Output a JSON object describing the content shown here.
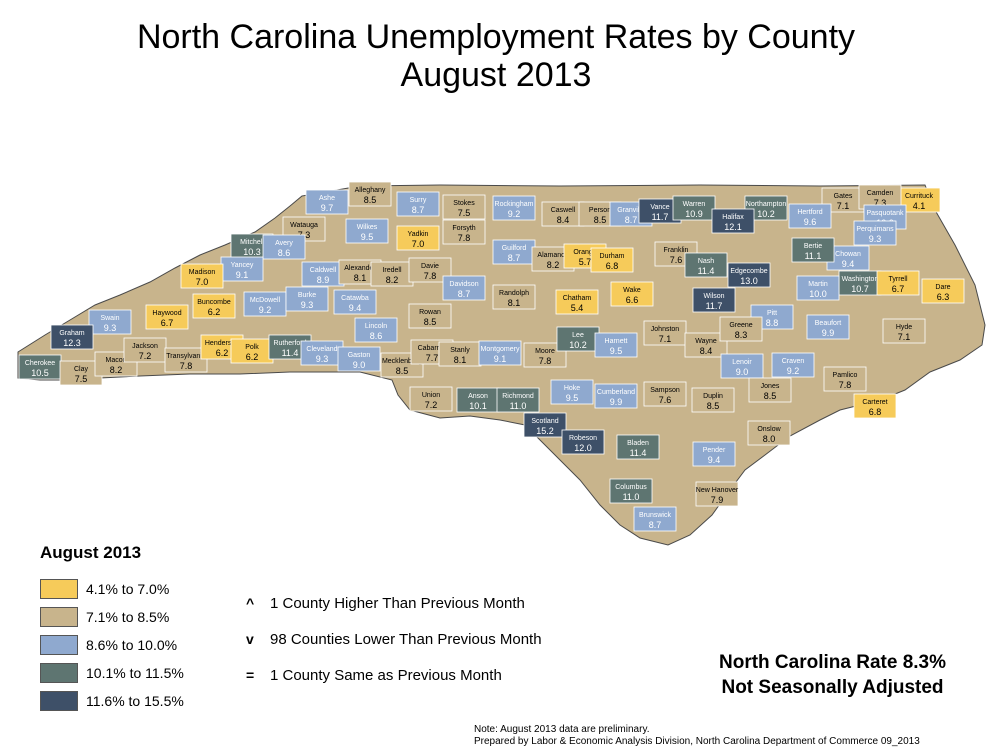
{
  "title": {
    "line1": "North Carolina Unemployment Rates by County",
    "line2": "August 2013"
  },
  "legend": {
    "title": "August 2013",
    "classes": [
      {
        "label": "4.1% to 7.0%",
        "color": "#f6cb5a"
      },
      {
        "label": "7.1% to 8.5%",
        "color": "#c8b48c"
      },
      {
        "label": "8.6% to 10.0%",
        "color": "#8fa9cf"
      },
      {
        "label": "10.1% to 11.5%",
        "color": "#5e7571"
      },
      {
        "label": "11.6% to 15.5%",
        "color": "#3e5068"
      }
    ]
  },
  "changes": [
    {
      "symbol": "^",
      "text": "1 County Higher Than Previous Month"
    },
    {
      "symbol": "v",
      "text": "98 Counties Lower Than Previous Month"
    },
    {
      "symbol": "=",
      "text": "1 County Same as Previous Month"
    }
  ],
  "state_rate": {
    "line1": "North Carolina Rate 8.3%",
    "line2": "Not Seasonally Adjusted"
  },
  "notes": {
    "line1": "Note: August 2013 data are preliminary.",
    "line2": "Prepared by Labor & Economic Analysis Division, North Carolina Department of Commerce 09_2013"
  },
  "counties": [
    {
      "name": "Alleghany",
      "value": "8.5"
    },
    {
      "name": "Ashe",
      "value": "9.7"
    },
    {
      "name": "Surry",
      "value": "8.7"
    },
    {
      "name": "Stokes",
      "value": "7.5"
    },
    {
      "name": "Rockingham",
      "value": "9.2"
    },
    {
      "name": "Caswell",
      "value": "8.4"
    },
    {
      "name": "Person",
      "value": "8.5"
    },
    {
      "name": "Granville",
      "value": "8.7"
    },
    {
      "name": "Vance",
      "value": "11.7"
    },
    {
      "name": "Warren",
      "value": "10.9"
    },
    {
      "name": "Northampton",
      "value": "10.2"
    },
    {
      "name": "Gates",
      "value": "7.1"
    },
    {
      "name": "Currituck",
      "value": "4.1"
    },
    {
      "name": "Camden",
      "value": "7.3"
    },
    {
      "name": "Hertford",
      "value": "9.6"
    },
    {
      "name": "Pasquotank",
      "value": "10.0"
    },
    {
      "name": "Perquimans",
      "value": "9.3"
    },
    {
      "name": "Chowan",
      "value": "9.4"
    },
    {
      "name": "Watauga",
      "value": "7.3"
    },
    {
      "name": "Wilkes",
      "value": "9.5"
    },
    {
      "name": "Yadkin",
      "value": "7.0"
    },
    {
      "name": "Forsyth",
      "value": "7.8"
    },
    {
      "name": "Guilford",
      "value": "8.7"
    },
    {
      "name": "Alamance",
      "value": "8.2"
    },
    {
      "name": "Orange",
      "value": "5.7"
    },
    {
      "name": "Durham",
      "value": "6.8"
    },
    {
      "name": "Franklin",
      "value": "7.6"
    },
    {
      "name": "Halifax",
      "value": "12.1"
    },
    {
      "name": "Bertie",
      "value": "11.1"
    },
    {
      "name": "Washington",
      "value": "10.7"
    },
    {
      "name": "Tyrrell",
      "value": "6.7"
    },
    {
      "name": "Dare",
      "value": "6.3"
    },
    {
      "name": "Mitchell",
      "value": "10.3"
    },
    {
      "name": "Avery",
      "value": "8.6"
    },
    {
      "name": "Yancey",
      "value": "9.1"
    },
    {
      "name": "Madison",
      "value": "7.0"
    },
    {
      "name": "Caldwell",
      "value": "8.9"
    },
    {
      "name": "Alexander",
      "value": "8.1"
    },
    {
      "name": "Iredell",
      "value": "8.2"
    },
    {
      "name": "Davie",
      "value": "7.8"
    },
    {
      "name": "Davidson",
      "value": "8.7"
    },
    {
      "name": "Randolph",
      "value": "8.1"
    },
    {
      "name": "Chatham",
      "value": "5.4"
    },
    {
      "name": "Wake",
      "value": "6.6"
    },
    {
      "name": "Nash",
      "value": "11.4"
    },
    {
      "name": "Edgecombe",
      "value": "13.0"
    },
    {
      "name": "Wilson",
      "value": "11.7"
    },
    {
      "name": "Martin",
      "value": "10.0"
    },
    {
      "name": "Hyde",
      "value": "7.1"
    },
    {
      "name": "Beaufort",
      "value": "9.9"
    },
    {
      "name": "Pitt",
      "value": "8.8"
    },
    {
      "name": "Haywood",
      "value": "6.7"
    },
    {
      "name": "Buncombe",
      "value": "6.2"
    },
    {
      "name": "McDowell",
      "value": "9.2"
    },
    {
      "name": "Burke",
      "value": "9.3"
    },
    {
      "name": "Catawba",
      "value": "9.4"
    },
    {
      "name": "Rowan",
      "value": "8.5"
    },
    {
      "name": "Swain",
      "value": "9.3"
    },
    {
      "name": "Graham",
      "value": "12.3"
    },
    {
      "name": "Cherokee",
      "value": "10.5"
    },
    {
      "name": "Clay",
      "value": "7.5"
    },
    {
      "name": "Macon",
      "value": "8.2"
    },
    {
      "name": "Jackson",
      "value": "7.2"
    },
    {
      "name": "Transylvania",
      "value": "7.8"
    },
    {
      "name": "Henderson",
      "value": "6.2"
    },
    {
      "name": "Polk",
      "value": "6.2"
    },
    {
      "name": "Rutherford",
      "value": "11.4"
    },
    {
      "name": "Cleveland",
      "value": "9.3"
    },
    {
      "name": "Lincoln",
      "value": "8.6"
    },
    {
      "name": "Gaston",
      "value": "9.0"
    },
    {
      "name": "Mecklenburg",
      "value": "8.5"
    },
    {
      "name": "Cabarrus",
      "value": "7.7"
    },
    {
      "name": "Stanly",
      "value": "8.1"
    },
    {
      "name": "Montgomery",
      "value": "9.1"
    },
    {
      "name": "Moore",
      "value": "7.8"
    },
    {
      "name": "Lee",
      "value": "10.2"
    },
    {
      "name": "Harnett",
      "value": "9.5"
    },
    {
      "name": "Johnston",
      "value": "7.1"
    },
    {
      "name": "Wayne",
      "value": "8.4"
    },
    {
      "name": "Greene",
      "value": "8.3"
    },
    {
      "name": "Lenoir",
      "value": "9.0"
    },
    {
      "name": "Craven",
      "value": "9.2"
    },
    {
      "name": "Pamlico",
      "value": "7.8"
    },
    {
      "name": "Jones",
      "value": "8.5"
    },
    {
      "name": "Carteret",
      "value": "6.8"
    },
    {
      "name": "Union",
      "value": "7.2"
    },
    {
      "name": "Anson",
      "value": "10.1"
    },
    {
      "name": "Richmond",
      "value": "11.0"
    },
    {
      "name": "Scotland",
      "value": "15.2"
    },
    {
      "name": "Hoke",
      "value": "9.5"
    },
    {
      "name": "Cumberland",
      "value": "9.9"
    },
    {
      "name": "Sampson",
      "value": "7.6"
    },
    {
      "name": "Duplin",
      "value": "8.5"
    },
    {
      "name": "Onslow",
      "value": "8.0"
    },
    {
      "name": "Robeson",
      "value": "12.0"
    },
    {
      "name": "Bladen",
      "value": "11.4"
    },
    {
      "name": "Pender",
      "value": "9.4"
    },
    {
      "name": "Columbus",
      "value": "11.0"
    },
    {
      "name": "New Hanover",
      "value": "7.9"
    },
    {
      "name": "Brunswick",
      "value": "8.7"
    }
  ]
}
